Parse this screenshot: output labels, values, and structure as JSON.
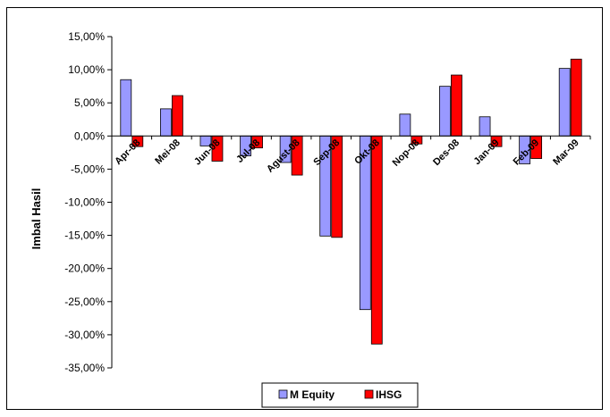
{
  "chart_data": {
    "type": "bar",
    "title": "",
    "xlabel": "",
    "ylabel": "Imbal  Hasil",
    "categories": [
      "Apr-08",
      "Mei-08",
      "Jun-08",
      "Jul-08",
      "Agust-08",
      "Sep-08",
      "Okt-08",
      "Nop-08",
      "Des-08",
      "Jan-09",
      "Feb-09",
      "Mar-09"
    ],
    "series": [
      {
        "name": "M Equity",
        "color": "#9999ff",
        "values": [
          8.5,
          4.1,
          -1.5,
          -3.0,
          -4.0,
          -15.1,
          -26.2,
          3.3,
          7.5,
          2.9,
          -4.2,
          10.2
        ]
      },
      {
        "name": "IHSG",
        "color": "#ff0000",
        "values": [
          -1.6,
          6.1,
          -3.8,
          -1.8,
          -5.9,
          -15.3,
          -31.4,
          -1.2,
          9.2,
          -1.6,
          -3.4,
          11.6
        ]
      }
    ],
    "ylim": [
      -35,
      15
    ],
    "yticks": [
      15,
      10,
      5,
      0,
      -5,
      -10,
      -15,
      -20,
      -25,
      -30,
      -35
    ],
    "ytick_labels": [
      "15,00%",
      "10,00%",
      "5,00%",
      "0,00%",
      "-5,00%",
      "-10,00%",
      "-15,00%",
      "-20,00%",
      "-25,00%",
      "-30,00%",
      "-35,00%"
    ],
    "grid": false,
    "legend_position": "bottom"
  }
}
